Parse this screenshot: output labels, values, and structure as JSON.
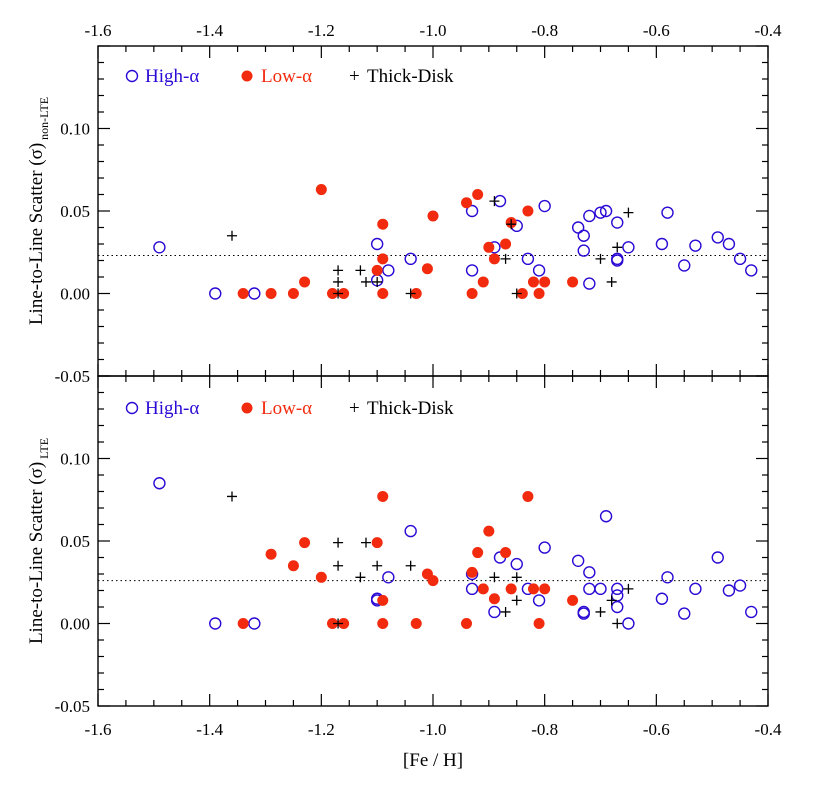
{
  "figure": {
    "xlabel": "[Fe / H]",
    "legend": {
      "high_alpha": "High-α",
      "low_alpha": "Low-α",
      "thick_disk": "Thick-Disk"
    }
  },
  "colors": {
    "high_alpha": "#2a0ad4",
    "low_alpha": "#f22a0e",
    "thick_disk": "#000000",
    "axes": "#000000"
  },
  "chart_data": [
    {
      "type": "scatter",
      "panel": "top",
      "ylabel": "Line-to-Line Scatter (σ)",
      "ylabel_sub": "non-LTE",
      "xlim": [
        -1.6,
        -0.4
      ],
      "ylim": [
        -0.05,
        0.15
      ],
      "xticks": [
        "-1.6",
        "-1.4",
        "-1.2",
        "-1.0",
        "-0.8",
        "-0.6",
        "-0.4"
      ],
      "yticks": [
        "-0.05",
        "0.00",
        "0.05",
        "0.10"
      ],
      "reference_line": 0.023,
      "series": [
        {
          "name": "High-α",
          "marker": "open-circle",
          "points": [
            [
              -1.49,
              0.028
            ],
            [
              -1.39,
              0.0
            ],
            [
              -1.32,
              0.0
            ],
            [
              -1.1,
              0.03
            ],
            [
              -1.1,
              0.008
            ],
            [
              -1.08,
              0.014
            ],
            [
              -1.04,
              0.021
            ],
            [
              -0.93,
              0.05
            ],
            [
              -0.93,
              0.014
            ],
            [
              -0.89,
              0.028
            ],
            [
              -0.88,
              0.056
            ],
            [
              -0.85,
              0.041
            ],
            [
              -0.83,
              0.021
            ],
            [
              -0.81,
              0.014
            ],
            [
              -0.8,
              0.053
            ],
            [
              -0.74,
              0.04
            ],
            [
              -0.73,
              0.035
            ],
            [
              -0.73,
              0.026
            ],
            [
              -0.72,
              0.047
            ],
            [
              -0.72,
              0.006
            ],
            [
              -0.7,
              0.049
            ],
            [
              -0.69,
              0.05
            ],
            [
              -0.67,
              0.043
            ],
            [
              -0.67,
              0.021
            ],
            [
              -0.67,
              0.02
            ],
            [
              -0.65,
              0.028
            ],
            [
              -0.59,
              0.03
            ],
            [
              -0.58,
              0.049
            ],
            [
              -0.55,
              0.017
            ],
            [
              -0.53,
              0.029
            ],
            [
              -0.49,
              0.034
            ],
            [
              -0.47,
              0.03
            ],
            [
              -0.45,
              0.021
            ],
            [
              -0.43,
              0.014
            ]
          ]
        },
        {
          "name": "Low-α",
          "marker": "filled-circle",
          "points": [
            [
              -1.34,
              0.0
            ],
            [
              -1.29,
              0.0
            ],
            [
              -1.25,
              0.0
            ],
            [
              -1.23,
              0.007
            ],
            [
              -1.2,
              0.063
            ],
            [
              -1.18,
              0.0
            ],
            [
              -1.16,
              0.0
            ],
            [
              -1.1,
              0.014
            ],
            [
              -1.09,
              0.042
            ],
            [
              -1.09,
              0.021
            ],
            [
              -1.09,
              0.0
            ],
            [
              -1.03,
              0.0
            ],
            [
              -1.01,
              0.015
            ],
            [
              -1.0,
              0.047
            ],
            [
              -0.94,
              0.055
            ],
            [
              -0.93,
              0.0
            ],
            [
              -0.92,
              0.06
            ],
            [
              -0.91,
              0.007
            ],
            [
              -0.9,
              0.028
            ],
            [
              -0.89,
              0.021
            ],
            [
              -0.87,
              0.03
            ],
            [
              -0.86,
              0.043
            ],
            [
              -0.84,
              0.0
            ],
            [
              -0.83,
              0.05
            ],
            [
              -0.82,
              0.007
            ],
            [
              -0.81,
              0.0
            ],
            [
              -0.8,
              0.007
            ],
            [
              -0.75,
              0.007
            ]
          ]
        },
        {
          "name": "Thick-Disk",
          "marker": "plus",
          "points": [
            [
              -1.36,
              0.035
            ],
            [
              -1.17,
              0.014
            ],
            [
              -1.17,
              0.007
            ],
            [
              -1.17,
              0.0
            ],
            [
              -1.13,
              0.014
            ],
            [
              -1.12,
              0.007
            ],
            [
              -1.1,
              0.007
            ],
            [
              -1.04,
              0.0
            ],
            [
              -0.89,
              0.056
            ],
            [
              -0.87,
              0.021
            ],
            [
              -0.86,
              0.042
            ],
            [
              -0.85,
              0.0
            ],
            [
              -0.7,
              0.021
            ],
            [
              -0.68,
              0.007
            ],
            [
              -0.67,
              0.028
            ],
            [
              -0.65,
              0.049
            ]
          ]
        }
      ]
    },
    {
      "type": "scatter",
      "panel": "bottom",
      "xlabel": "[Fe / H]",
      "ylabel": "Line-to-Line Scatter (σ)",
      "ylabel_sub": "LTE",
      "xlim": [
        -1.6,
        -0.4
      ],
      "ylim": [
        -0.05,
        0.15
      ],
      "xticks": [
        "-1.6",
        "-1.4",
        "-1.2",
        "-1.0",
        "-0.8",
        "-0.6",
        "-0.4"
      ],
      "yticks": [
        "-0.05",
        "0.00",
        "0.05",
        "0.10"
      ],
      "reference_line": 0.026,
      "series": [
        {
          "name": "High-α",
          "marker": "open-circle",
          "points": [
            [
              -1.49,
              0.085
            ],
            [
              -1.39,
              0.0
            ],
            [
              -1.32,
              0.0
            ],
            [
              -1.1,
              0.015
            ],
            [
              -1.1,
              0.014
            ],
            [
              -1.08,
              0.028
            ],
            [
              -1.04,
              0.056
            ],
            [
              -0.93,
              0.03
            ],
            [
              -0.93,
              0.021
            ],
            [
              -0.89,
              0.007
            ],
            [
              -0.88,
              0.04
            ],
            [
              -0.85,
              0.036
            ],
            [
              -0.83,
              0.021
            ],
            [
              -0.81,
              0.014
            ],
            [
              -0.8,
              0.046
            ],
            [
              -0.74,
              0.038
            ],
            [
              -0.73,
              0.007
            ],
            [
              -0.73,
              0.006
            ],
            [
              -0.72,
              0.031
            ],
            [
              -0.72,
              0.021
            ],
            [
              -0.7,
              0.021
            ],
            [
              -0.69,
              0.065
            ],
            [
              -0.67,
              0.021
            ],
            [
              -0.67,
              0.017
            ],
            [
              -0.67,
              0.01
            ],
            [
              -0.65,
              0.0
            ],
            [
              -0.59,
              0.015
            ],
            [
              -0.58,
              0.028
            ],
            [
              -0.55,
              0.006
            ],
            [
              -0.53,
              0.021
            ],
            [
              -0.49,
              0.04
            ],
            [
              -0.47,
              0.02
            ],
            [
              -0.45,
              0.023
            ],
            [
              -0.43,
              0.007
            ]
          ]
        },
        {
          "name": "Low-α",
          "marker": "filled-circle",
          "points": [
            [
              -1.34,
              0.0
            ],
            [
              -1.29,
              0.042
            ],
            [
              -1.25,
              0.035
            ],
            [
              -1.23,
              0.049
            ],
            [
              -1.2,
              0.028
            ],
            [
              -1.18,
              0.0
            ],
            [
              -1.16,
              0.0
            ],
            [
              -1.1,
              0.049
            ],
            [
              -1.09,
              0.077
            ],
            [
              -1.09,
              0.014
            ],
            [
              -1.09,
              0.0
            ],
            [
              -1.03,
              0.0
            ],
            [
              -1.01,
              0.03
            ],
            [
              -1.0,
              0.026
            ],
            [
              -0.94,
              0.0
            ],
            [
              -0.93,
              0.031
            ],
            [
              -0.92,
              0.043
            ],
            [
              -0.91,
              0.021
            ],
            [
              -0.9,
              0.056
            ],
            [
              -0.89,
              0.015
            ],
            [
              -0.87,
              0.043
            ],
            [
              -0.86,
              0.021
            ],
            [
              -0.83,
              0.077
            ],
            [
              -0.82,
              0.021
            ],
            [
              -0.81,
              0.0
            ],
            [
              -0.8,
              0.021
            ],
            [
              -0.75,
              0.014
            ]
          ]
        },
        {
          "name": "Thick-Disk",
          "marker": "plus",
          "points": [
            [
              -1.36,
              0.077
            ],
            [
              -1.17,
              0.049
            ],
            [
              -1.17,
              0.035
            ],
            [
              -1.17,
              0.0
            ],
            [
              -1.13,
              0.028
            ],
            [
              -1.12,
              0.049
            ],
            [
              -1.1,
              0.035
            ],
            [
              -1.04,
              0.035
            ],
            [
              -0.89,
              0.028
            ],
            [
              -0.87,
              0.007
            ],
            [
              -0.85,
              0.014
            ],
            [
              -0.85,
              0.028
            ],
            [
              -0.7,
              0.007
            ],
            [
              -0.68,
              0.014
            ],
            [
              -0.67,
              0.0
            ],
            [
              -0.65,
              0.021
            ]
          ]
        }
      ]
    }
  ]
}
